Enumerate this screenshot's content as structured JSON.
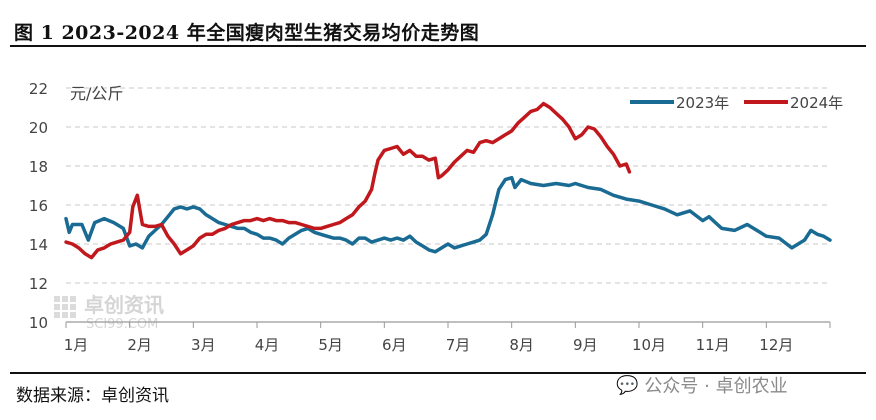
{
  "title": "图 1  2023-2024 年全国瘦肉型生猪交易均价走势图",
  "source": "数据来源：卓创资讯",
  "watermark": {
    "logo_text": "卓创资讯",
    "logo_sub": "SCI99.COM",
    "wechat_text": "公众号 · 卓创农业",
    "icon": "wechat-icon"
  },
  "colors": {
    "s2023": "#1a6b93",
    "s2024": "#c0181d",
    "grid": "#c8c8c8",
    "axis": "#999999",
    "text": "#444444"
  },
  "chart_data": {
    "type": "line",
    "ylabel": "元/公斤",
    "ylim": [
      10,
      22
    ],
    "yticks": [
      10,
      12,
      14,
      16,
      18,
      20,
      22
    ],
    "xlim": [
      1,
      13
    ],
    "xticks": [
      "1月",
      "2月",
      "3月",
      "4月",
      "5月",
      "6月",
      "7月",
      "8月",
      "9月",
      "10月",
      "11月",
      "12月"
    ],
    "grid": "horizontal dashed",
    "legend": "top-right",
    "series": [
      {
        "name": "2023年",
        "points": [
          [
            1.0,
            15.3
          ],
          [
            1.05,
            14.6
          ],
          [
            1.1,
            15.0
          ],
          [
            1.25,
            15.0
          ],
          [
            1.35,
            14.2
          ],
          [
            1.45,
            15.1
          ],
          [
            1.6,
            15.3
          ],
          [
            1.75,
            15.1
          ],
          [
            1.9,
            14.8
          ],
          [
            2.0,
            13.9
          ],
          [
            2.1,
            14.0
          ],
          [
            2.2,
            13.8
          ],
          [
            2.3,
            14.4
          ],
          [
            2.4,
            14.7
          ],
          [
            2.5,
            15.0
          ],
          [
            2.6,
            15.4
          ],
          [
            2.7,
            15.8
          ],
          [
            2.8,
            15.9
          ],
          [
            2.9,
            15.8
          ],
          [
            3.0,
            15.9
          ],
          [
            3.1,
            15.8
          ],
          [
            3.2,
            15.5
          ],
          [
            3.3,
            15.3
          ],
          [
            3.4,
            15.1
          ],
          [
            3.5,
            15.0
          ],
          [
            3.6,
            14.9
          ],
          [
            3.7,
            14.8
          ],
          [
            3.8,
            14.8
          ],
          [
            3.9,
            14.6
          ],
          [
            4.0,
            14.5
          ],
          [
            4.1,
            14.3
          ],
          [
            4.2,
            14.3
          ],
          [
            4.3,
            14.2
          ],
          [
            4.4,
            14.0
          ],
          [
            4.5,
            14.3
          ],
          [
            4.6,
            14.5
          ],
          [
            4.7,
            14.7
          ],
          [
            4.8,
            14.8
          ],
          [
            4.9,
            14.6
          ],
          [
            5.0,
            14.5
          ],
          [
            5.1,
            14.4
          ],
          [
            5.2,
            14.3
          ],
          [
            5.3,
            14.3
          ],
          [
            5.4,
            14.2
          ],
          [
            5.5,
            14.0
          ],
          [
            5.6,
            14.3
          ],
          [
            5.7,
            14.3
          ],
          [
            5.8,
            14.1
          ],
          [
            5.9,
            14.2
          ],
          [
            6.0,
            14.3
          ],
          [
            6.1,
            14.2
          ],
          [
            6.2,
            14.3
          ],
          [
            6.3,
            14.2
          ],
          [
            6.4,
            14.4
          ],
          [
            6.5,
            14.1
          ],
          [
            6.6,
            13.9
          ],
          [
            6.7,
            13.7
          ],
          [
            6.8,
            13.6
          ],
          [
            6.9,
            13.8
          ],
          [
            7.0,
            14.0
          ],
          [
            7.1,
            13.8
          ],
          [
            7.2,
            13.9
          ],
          [
            7.3,
            14.0
          ],
          [
            7.4,
            14.1
          ],
          [
            7.5,
            14.2
          ],
          [
            7.6,
            14.5
          ],
          [
            7.7,
            15.5
          ],
          [
            7.8,
            16.8
          ],
          [
            7.9,
            17.3
          ],
          [
            8.0,
            17.4
          ],
          [
            8.05,
            16.9
          ],
          [
            8.15,
            17.3
          ],
          [
            8.3,
            17.1
          ],
          [
            8.5,
            17.0
          ],
          [
            8.7,
            17.1
          ],
          [
            8.9,
            17.0
          ],
          [
            9.0,
            17.1
          ],
          [
            9.2,
            16.9
          ],
          [
            9.4,
            16.8
          ],
          [
            9.6,
            16.5
          ],
          [
            9.8,
            16.3
          ],
          [
            10.0,
            16.2
          ],
          [
            10.2,
            16.0
          ],
          [
            10.4,
            15.8
          ],
          [
            10.6,
            15.5
          ],
          [
            10.8,
            15.7
          ],
          [
            11.0,
            15.2
          ],
          [
            11.1,
            15.4
          ],
          [
            11.2,
            15.1
          ],
          [
            11.3,
            14.8
          ],
          [
            11.5,
            14.7
          ],
          [
            11.7,
            15.0
          ],
          [
            11.9,
            14.6
          ],
          [
            12.0,
            14.4
          ],
          [
            12.2,
            14.3
          ],
          [
            12.4,
            13.8
          ],
          [
            12.6,
            14.2
          ],
          [
            12.7,
            14.7
          ],
          [
            12.8,
            14.5
          ],
          [
            12.9,
            14.4
          ],
          [
            13.0,
            14.2
          ]
        ]
      },
      {
        "name": "2024年",
        "points": [
          [
            1.0,
            14.1
          ],
          [
            1.1,
            14.0
          ],
          [
            1.2,
            13.8
          ],
          [
            1.3,
            13.5
          ],
          [
            1.4,
            13.3
          ],
          [
            1.5,
            13.7
          ],
          [
            1.6,
            13.8
          ],
          [
            1.7,
            14.0
          ],
          [
            1.8,
            14.1
          ],
          [
            1.9,
            14.2
          ],
          [
            2.0,
            14.6
          ],
          [
            2.05,
            15.9
          ],
          [
            2.12,
            16.5
          ],
          [
            2.2,
            15.0
          ],
          [
            2.3,
            14.9
          ],
          [
            2.4,
            14.9
          ],
          [
            2.5,
            15.0
          ],
          [
            2.6,
            14.4
          ],
          [
            2.7,
            14.0
          ],
          [
            2.8,
            13.5
          ],
          [
            2.9,
            13.7
          ],
          [
            3.0,
            13.9
          ],
          [
            3.1,
            14.3
          ],
          [
            3.2,
            14.5
          ],
          [
            3.3,
            14.5
          ],
          [
            3.4,
            14.7
          ],
          [
            3.5,
            14.8
          ],
          [
            3.6,
            15.0
          ],
          [
            3.7,
            15.1
          ],
          [
            3.8,
            15.2
          ],
          [
            3.9,
            15.2
          ],
          [
            4.0,
            15.3
          ],
          [
            4.1,
            15.2
          ],
          [
            4.2,
            15.3
          ],
          [
            4.3,
            15.2
          ],
          [
            4.4,
            15.2
          ],
          [
            4.5,
            15.1
          ],
          [
            4.6,
            15.1
          ],
          [
            4.7,
            15.0
          ],
          [
            4.8,
            14.9
          ],
          [
            4.9,
            14.8
          ],
          [
            5.0,
            14.8
          ],
          [
            5.1,
            14.9
          ],
          [
            5.2,
            15.0
          ],
          [
            5.3,
            15.1
          ],
          [
            5.4,
            15.3
          ],
          [
            5.5,
            15.5
          ],
          [
            5.6,
            15.9
          ],
          [
            5.7,
            16.2
          ],
          [
            5.8,
            16.8
          ],
          [
            5.85,
            17.6
          ],
          [
            5.9,
            18.3
          ],
          [
            6.0,
            18.8
          ],
          [
            6.1,
            18.9
          ],
          [
            6.2,
            19.0
          ],
          [
            6.3,
            18.6
          ],
          [
            6.4,
            18.8
          ],
          [
            6.5,
            18.5
          ],
          [
            6.6,
            18.5
          ],
          [
            6.7,
            18.3
          ],
          [
            6.8,
            18.4
          ],
          [
            6.85,
            17.4
          ],
          [
            6.9,
            17.5
          ],
          [
            7.0,
            17.8
          ],
          [
            7.1,
            18.2
          ],
          [
            7.2,
            18.5
          ],
          [
            7.3,
            18.8
          ],
          [
            7.4,
            18.7
          ],
          [
            7.5,
            19.2
          ],
          [
            7.6,
            19.3
          ],
          [
            7.7,
            19.2
          ],
          [
            7.8,
            19.4
          ],
          [
            7.9,
            19.6
          ],
          [
            8.0,
            19.8
          ],
          [
            8.1,
            20.2
          ],
          [
            8.2,
            20.5
          ],
          [
            8.3,
            20.8
          ],
          [
            8.4,
            20.9
          ],
          [
            8.5,
            21.2
          ],
          [
            8.6,
            21.0
          ],
          [
            8.7,
            20.7
          ],
          [
            8.8,
            20.4
          ],
          [
            8.9,
            20.0
          ],
          [
            9.0,
            19.4
          ],
          [
            9.1,
            19.6
          ],
          [
            9.2,
            20.0
          ],
          [
            9.3,
            19.9
          ],
          [
            9.4,
            19.5
          ],
          [
            9.5,
            19.0
          ],
          [
            9.6,
            18.6
          ],
          [
            9.7,
            18.0
          ],
          [
            9.8,
            18.1
          ],
          [
            9.85,
            17.7
          ]
        ]
      }
    ]
  }
}
